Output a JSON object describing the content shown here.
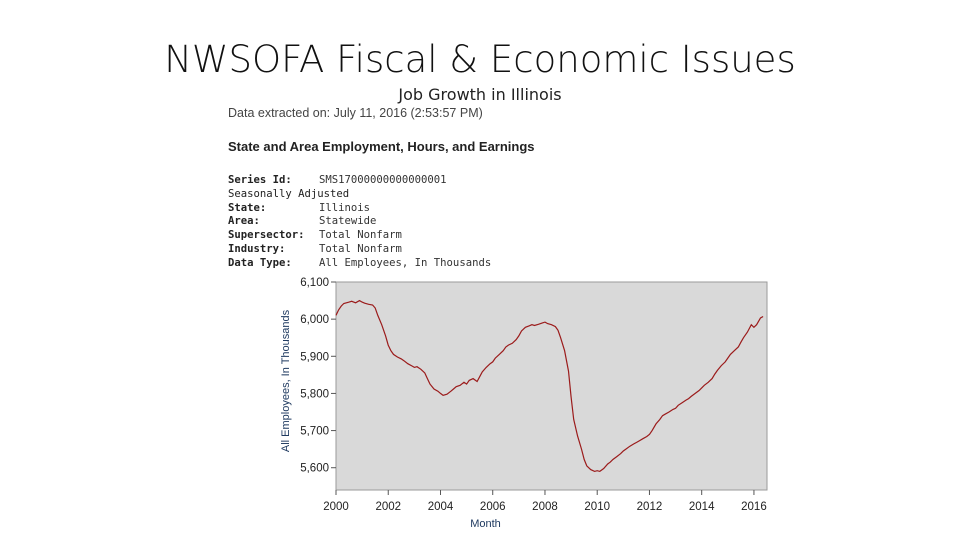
{
  "slide": {
    "title": "NWSOFA Fiscal & Economic Issues",
    "subtitle": "Job Growth in Illinois"
  },
  "report": {
    "extracted": "Data extracted on: July 11, 2016 (2:53:57 PM)",
    "heading": "State and Area Employment, Hours, and Earnings",
    "adjustment": "Seasonally Adjusted",
    "meta": [
      {
        "key": "Series Id:",
        "value": "SMS17000000000000001"
      },
      {
        "key": "State:",
        "value": "Illinois"
      },
      {
        "key": "Area:",
        "value": "Statewide"
      },
      {
        "key": "Supersector:",
        "value": "Total Nonfarm"
      },
      {
        "key": "Industry:",
        "value": "Total Nonfarm"
      },
      {
        "key": "Data Type:",
        "value": "All Employees, In Thousands"
      }
    ]
  },
  "colors": {
    "plot_bg": "#d9d9d9",
    "line": "#9b1b1b",
    "axis_title": "#1f3a60"
  },
  "chart_data": {
    "type": "line",
    "xlabel": "Month",
    "ylabel": "All Employees, In Thousands",
    "xlim": [
      2000,
      2016.5
    ],
    "ylim": [
      5540,
      6100
    ],
    "yticks": [
      5600,
      5700,
      5800,
      5900,
      6000,
      6100
    ],
    "ytick_labels": [
      "5,600",
      "5,700",
      "5,800",
      "5,900",
      "6,000",
      "6,100"
    ],
    "xticks": [
      2000,
      2002,
      2004,
      2006,
      2008,
      2010,
      2012,
      2014,
      2016
    ],
    "xtick_labels": [
      "2000",
      "2002",
      "2004",
      "2006",
      "2008",
      "2010",
      "2012",
      "2014",
      "2016"
    ],
    "grid": false,
    "series": [
      {
        "points": [
          [
            2000.0,
            6010
          ],
          [
            2000.1,
            6025
          ],
          [
            2000.2,
            6035
          ],
          [
            2000.3,
            6042
          ],
          [
            2000.5,
            6046
          ],
          [
            2000.6,
            6048
          ],
          [
            2000.75,
            6044
          ],
          [
            2000.9,
            6050
          ],
          [
            2001.0,
            6046
          ],
          [
            2001.1,
            6043
          ],
          [
            2001.25,
            6040
          ],
          [
            2001.4,
            6038
          ],
          [
            2001.5,
            6030
          ],
          [
            2001.6,
            6010
          ],
          [
            2001.75,
            5985
          ],
          [
            2001.9,
            5955
          ],
          [
            2002.0,
            5930
          ],
          [
            2002.1,
            5915
          ],
          [
            2002.2,
            5905
          ],
          [
            2002.35,
            5898
          ],
          [
            2002.5,
            5893
          ],
          [
            2002.6,
            5888
          ],
          [
            2002.75,
            5880
          ],
          [
            2002.9,
            5874
          ],
          [
            2003.0,
            5870
          ],
          [
            2003.1,
            5872
          ],
          [
            2003.25,
            5865
          ],
          [
            2003.4,
            5855
          ],
          [
            2003.5,
            5840
          ],
          [
            2003.6,
            5825
          ],
          [
            2003.75,
            5812
          ],
          [
            2003.9,
            5806
          ],
          [
            2004.0,
            5800
          ],
          [
            2004.1,
            5795
          ],
          [
            2004.25,
            5798
          ],
          [
            2004.4,
            5806
          ],
          [
            2004.5,
            5812
          ],
          [
            2004.6,
            5818
          ],
          [
            2004.75,
            5822
          ],
          [
            2004.9,
            5830
          ],
          [
            2005.0,
            5825
          ],
          [
            2005.1,
            5835
          ],
          [
            2005.25,
            5840
          ],
          [
            2005.4,
            5832
          ],
          [
            2005.5,
            5845
          ],
          [
            2005.6,
            5858
          ],
          [
            2005.75,
            5870
          ],
          [
            2005.9,
            5880
          ],
          [
            2006.0,
            5885
          ],
          [
            2006.1,
            5895
          ],
          [
            2006.25,
            5905
          ],
          [
            2006.4,
            5915
          ],
          [
            2006.5,
            5925
          ],
          [
            2006.6,
            5930
          ],
          [
            2006.75,
            5935
          ],
          [
            2006.9,
            5945
          ],
          [
            2007.0,
            5955
          ],
          [
            2007.1,
            5968
          ],
          [
            2007.25,
            5978
          ],
          [
            2007.4,
            5982
          ],
          [
            2007.5,
            5985
          ],
          [
            2007.6,
            5983
          ],
          [
            2007.75,
            5986
          ],
          [
            2007.9,
            5990
          ],
          [
            2008.0,
            5992
          ],
          [
            2008.1,
            5988
          ],
          [
            2008.25,
            5985
          ],
          [
            2008.4,
            5980
          ],
          [
            2008.5,
            5970
          ],
          [
            2008.6,
            5950
          ],
          [
            2008.75,
            5915
          ],
          [
            2008.9,
            5860
          ],
          [
            2009.0,
            5790
          ],
          [
            2009.1,
            5730
          ],
          [
            2009.25,
            5685
          ],
          [
            2009.4,
            5650
          ],
          [
            2009.5,
            5622
          ],
          [
            2009.6,
            5605
          ],
          [
            2009.75,
            5595
          ],
          [
            2009.9,
            5590
          ],
          [
            2010.0,
            5592
          ],
          [
            2010.1,
            5590
          ],
          [
            2010.25,
            5598
          ],
          [
            2010.4,
            5610
          ],
          [
            2010.5,
            5615
          ],
          [
            2010.6,
            5622
          ],
          [
            2010.75,
            5630
          ],
          [
            2010.9,
            5638
          ],
          [
            2011.0,
            5645
          ],
          [
            2011.1,
            5650
          ],
          [
            2011.25,
            5658
          ],
          [
            2011.4,
            5664
          ],
          [
            2011.5,
            5668
          ],
          [
            2011.6,
            5672
          ],
          [
            2011.75,
            5678
          ],
          [
            2011.9,
            5684
          ],
          [
            2012.0,
            5690
          ],
          [
            2012.1,
            5700
          ],
          [
            2012.25,
            5718
          ],
          [
            2012.4,
            5730
          ],
          [
            2012.5,
            5740
          ],
          [
            2012.6,
            5744
          ],
          [
            2012.75,
            5750
          ],
          [
            2012.9,
            5757
          ],
          [
            2013.0,
            5760
          ],
          [
            2013.1,
            5768
          ],
          [
            2013.25,
            5775
          ],
          [
            2013.4,
            5782
          ],
          [
            2013.5,
            5786
          ],
          [
            2013.6,
            5792
          ],
          [
            2013.75,
            5800
          ],
          [
            2013.9,
            5808
          ],
          [
            2014.0,
            5815
          ],
          [
            2014.1,
            5822
          ],
          [
            2014.25,
            5830
          ],
          [
            2014.4,
            5840
          ],
          [
            2014.5,
            5852
          ],
          [
            2014.6,
            5862
          ],
          [
            2014.75,
            5875
          ],
          [
            2014.9,
            5885
          ],
          [
            2015.0,
            5895
          ],
          [
            2015.1,
            5905
          ],
          [
            2015.25,
            5915
          ],
          [
            2015.4,
            5925
          ],
          [
            2015.5,
            5938
          ],
          [
            2015.6,
            5950
          ],
          [
            2015.75,
            5965
          ],
          [
            2015.9,
            5985
          ],
          [
            2016.0,
            5978
          ],
          [
            2016.1,
            5985
          ],
          [
            2016.25,
            6003
          ],
          [
            2016.35,
            6007
          ]
        ]
      }
    ]
  }
}
